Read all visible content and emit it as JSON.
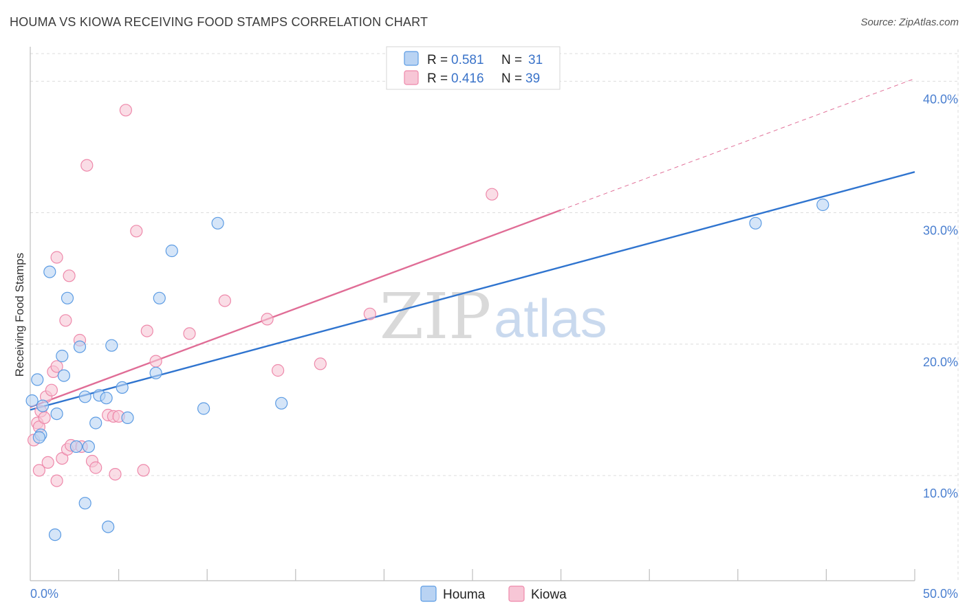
{
  "title": "HOUMA VS KIOWA RECEIVING FOOD STAMPS CORRELATION CHART",
  "source": "Source: ZipAtlas.com",
  "watermark": {
    "zip": "ZIP",
    "atlas": "atlas"
  },
  "colors": {
    "houma": "#5b9be3",
    "houma_fill": "#b9d3f3",
    "houma_line": "#2f74cf",
    "kiowa": "#ee88aa",
    "kiowa_fill": "#f7c6d6",
    "kiowa_line": "#e06d96",
    "tick_text": "#4a7fd0",
    "grid": "#dcdcdc"
  },
  "legend": {
    "rows": [
      {
        "series": "houma",
        "r_label": "R =",
        "r_value": "0.581",
        "n_label": "N =",
        "n_value": "31"
      },
      {
        "series": "kiowa",
        "r_label": "R =",
        "r_value": "0.416",
        "n_label": "N =",
        "n_value": "39"
      }
    ]
  },
  "chart_data": {
    "type": "scatter",
    "title": "HOUMA VS KIOWA RECEIVING FOOD STAMPS CORRELATION CHART",
    "xlabel": "",
    "ylabel": "Receiving Food Stamps",
    "xlim": [
      0,
      50
    ],
    "ylim": [
      2,
      42
    ],
    "x_tick_labels": [
      "0.0%",
      "50.0%"
    ],
    "y_ticks": [
      10,
      20,
      30,
      40
    ],
    "y_tick_labels": [
      "10.0%",
      "20.0%",
      "30.0%",
      "40.0%"
    ],
    "grid": true,
    "legend_position": "top-center",
    "series": [
      {
        "name": "Houma",
        "r": 0.581,
        "n": 31,
        "points": [
          [
            0.1,
            15.7
          ],
          [
            0.4,
            17.3
          ],
          [
            0.7,
            15.3
          ],
          [
            0.6,
            13.1
          ],
          [
            0.5,
            12.9
          ],
          [
            1.1,
            25.5
          ],
          [
            1.5,
            14.7
          ],
          [
            1.8,
            19.1
          ],
          [
            1.9,
            17.6
          ],
          [
            2.1,
            23.5
          ],
          [
            2.8,
            19.8
          ],
          [
            3.1,
            16.0
          ],
          [
            2.6,
            12.2
          ],
          [
            3.3,
            12.2
          ],
          [
            3.7,
            14.0
          ],
          [
            3.9,
            16.1
          ],
          [
            4.3,
            15.9
          ],
          [
            4.6,
            19.9
          ],
          [
            5.2,
            16.7
          ],
          [
            5.5,
            14.4
          ],
          [
            7.1,
            17.8
          ],
          [
            7.3,
            23.5
          ],
          [
            8.0,
            27.1
          ],
          [
            9.8,
            15.1
          ],
          [
            10.6,
            29.2
          ],
          [
            14.2,
            15.5
          ],
          [
            3.1,
            7.9
          ],
          [
            4.4,
            6.1
          ],
          [
            1.4,
            5.5
          ],
          [
            41.0,
            29.2
          ],
          [
            44.8,
            30.6
          ]
        ],
        "trend": {
          "x": [
            0,
            50
          ],
          "y": [
            15.0,
            33.1
          ]
        }
      },
      {
        "name": "Kiowa",
        "r": 0.416,
        "n": 39,
        "points": [
          [
            0.2,
            12.7
          ],
          [
            0.4,
            14.0
          ],
          [
            0.5,
            13.7
          ],
          [
            0.6,
            14.9
          ],
          [
            0.8,
            14.4
          ],
          [
            0.9,
            16.0
          ],
          [
            1.0,
            11.0
          ],
          [
            1.2,
            16.5
          ],
          [
            1.3,
            17.9
          ],
          [
            1.5,
            18.3
          ],
          [
            0.5,
            10.4
          ],
          [
            1.5,
            9.6
          ],
          [
            1.8,
            11.3
          ],
          [
            2.1,
            12.0
          ],
          [
            2.3,
            12.3
          ],
          [
            2.9,
            12.2
          ],
          [
            3.5,
            11.1
          ],
          [
            3.7,
            10.6
          ],
          [
            4.4,
            14.6
          ],
          [
            4.7,
            14.5
          ],
          [
            5.0,
            14.5
          ],
          [
            4.8,
            10.1
          ],
          [
            6.4,
            10.4
          ],
          [
            6.6,
            21.0
          ],
          [
            7.1,
            18.7
          ],
          [
            9.0,
            20.8
          ],
          [
            1.5,
            26.6
          ],
          [
            2.0,
            21.8
          ],
          [
            2.2,
            25.2
          ],
          [
            2.8,
            20.3
          ],
          [
            6.0,
            28.6
          ],
          [
            11.0,
            23.3
          ],
          [
            13.4,
            21.9
          ],
          [
            14.0,
            18.0
          ],
          [
            16.4,
            18.5
          ],
          [
            19.2,
            22.3
          ],
          [
            26.1,
            31.4
          ],
          [
            3.2,
            33.6
          ],
          [
            5.4,
            37.8
          ]
        ],
        "trend": {
          "x": [
            0,
            30
          ],
          "y": [
            15.2,
            30.2
          ]
        },
        "trend_dashed": {
          "x": [
            30,
            50
          ],
          "y": [
            30.2,
            40.2
          ]
        }
      }
    ]
  },
  "bottom_legend": [
    {
      "series": "houma",
      "label": "Houma"
    },
    {
      "series": "kiowa",
      "label": "Kiowa"
    }
  ]
}
